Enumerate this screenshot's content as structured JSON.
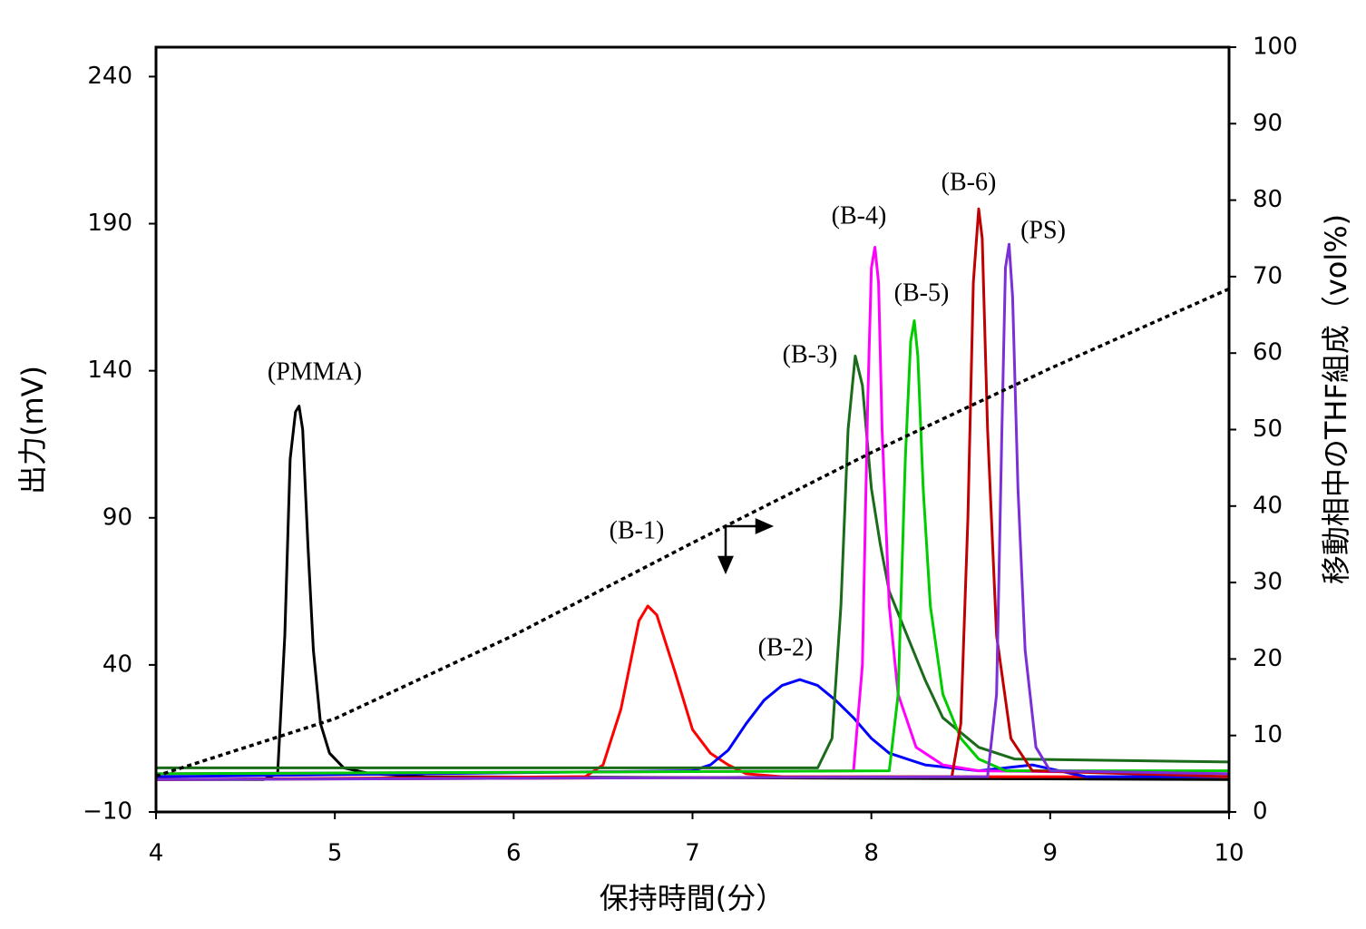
{
  "chart_data": {
    "type": "line",
    "x_label": "保持時間(分）",
    "y_label": "出力(mV)",
    "y2_label": "移動相中のTHF組成（vol%)",
    "xlim": [
      4,
      10
    ],
    "xticks": [
      4,
      5,
      6,
      7,
      8,
      9,
      10
    ],
    "ylim": [
      -10,
      250
    ],
    "yticks": [
      {
        "value": -10,
        "label": "−10"
      },
      40,
      90,
      140,
      190,
      240
    ],
    "y2lim": [
      0,
      100
    ],
    "y2ticks": [
      0,
      10,
      20,
      30,
      40,
      50,
      60,
      70,
      80,
      90,
      100
    ],
    "series": [
      {
        "name": "(PMMA)",
        "color": "#000000",
        "x": [
          4,
          4.6,
          4.68,
          4.72,
          4.75,
          4.78,
          4.8,
          4.82,
          4.85,
          4.88,
          4.92,
          4.97,
          5.05,
          5.2,
          5.5,
          10
        ],
        "values": [
          1,
          1,
          3,
          50,
          110,
          126,
          128,
          120,
          80,
          45,
          20,
          10,
          5,
          3,
          2,
          1
        ]
      },
      {
        "name": "(B-1)",
        "color": "#ff0000",
        "x": [
          4,
          6.4,
          6.5,
          6.6,
          6.7,
          6.75,
          6.8,
          6.9,
          7.0,
          7.1,
          7.2,
          7.3,
          7.5,
          10
        ],
        "values": [
          1,
          2,
          6,
          25,
          55,
          60,
          57,
          38,
          18,
          10,
          6,
          3,
          2,
          2
        ]
      },
      {
        "name": "(B-2)",
        "color": "#0000ff",
        "x": [
          4,
          7,
          7.1,
          7.2,
          7.3,
          7.4,
          7.5,
          7.6,
          7.7,
          7.8,
          7.9,
          8.0,
          8.1,
          8.3,
          8.6,
          8.9,
          9.2,
          10
        ],
        "values": [
          2,
          4,
          6,
          11,
          20,
          28,
          33,
          35,
          33,
          28,
          22,
          15,
          10,
          6,
          4,
          6,
          2,
          2
        ]
      },
      {
        "name": "(B-3)",
        "color": "#1a6b1a",
        "x": [
          4,
          7.7,
          7.78,
          7.83,
          7.87,
          7.91,
          7.95,
          8.0,
          8.05,
          8.1,
          8.2,
          8.3,
          8.4,
          8.6,
          8.8,
          10
        ],
        "values": [
          5,
          5,
          15,
          60,
          120,
          145,
          135,
          100,
          81,
          65,
          50,
          35,
          22,
          12,
          8,
          7
        ]
      },
      {
        "name": "(B-4)",
        "color": "#ff00ff",
        "x": [
          4,
          7.9,
          7.95,
          7.98,
          8.0,
          8.02,
          8.04,
          8.06,
          8.1,
          8.15,
          8.25,
          8.4,
          8.6,
          10
        ],
        "values": [
          3,
          4,
          40,
          130,
          175,
          182,
          170,
          120,
          60,
          30,
          12,
          6,
          4,
          3
        ]
      },
      {
        "name": "(B-5)",
        "color": "#00cc00",
        "x": [
          4,
          8.1,
          8.15,
          8.19,
          8.22,
          8.24,
          8.26,
          8.29,
          8.33,
          8.4,
          8.5,
          8.6,
          8.75,
          10
        ],
        "values": [
          3,
          4,
          30,
          110,
          150,
          157,
          145,
          100,
          60,
          30,
          15,
          8,
          4,
          4
        ]
      },
      {
        "name": "(B-6)",
        "color": "#c00000",
        "x": [
          4,
          8.45,
          8.5,
          8.54,
          8.57,
          8.6,
          8.62,
          8.65,
          8.7,
          8.78,
          8.9,
          10
        ],
        "values": [
          1,
          2,
          20,
          90,
          170,
          195,
          185,
          120,
          50,
          15,
          4,
          2
        ]
      },
      {
        "name": "(PS)",
        "color": "#7b2fd6",
        "x": [
          4,
          8.65,
          8.7,
          8.73,
          8.75,
          8.77,
          8.79,
          8.82,
          8.86,
          8.92,
          9.0,
          10
        ],
        "values": [
          1,
          2,
          30,
          120,
          175,
          183,
          165,
          100,
          45,
          12,
          4,
          3
        ]
      },
      {
        "color": "#000000",
        "axis": "y2",
        "dashed": true,
        "x": [
          4,
          5,
          6,
          7,
          8,
          9,
          10
        ],
        "values": [
          4.7,
          12.2,
          23.1,
          35.2,
          47,
          58,
          68.4
        ]
      }
    ]
  }
}
